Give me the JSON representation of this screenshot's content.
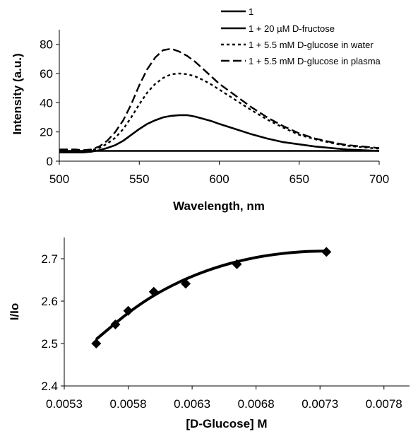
{
  "chart_data": [
    {
      "type": "line",
      "xlabel": "Wavelength, nm",
      "ylabel": "Intensity (a.u.)",
      "xlim": [
        500,
        700
      ],
      "ylim": [
        0,
        90
      ],
      "x_ticks": [
        "500",
        "550",
        "600",
        "650",
        "700"
      ],
      "y_ticks": [
        "0",
        "20",
        "40",
        "60",
        "80"
      ],
      "grid": false,
      "legend_position": "top-right",
      "x": [
        500,
        510,
        515,
        520,
        525,
        530,
        535,
        540,
        545,
        550,
        555,
        560,
        565,
        570,
        575,
        580,
        585,
        590,
        595,
        600,
        610,
        620,
        630,
        640,
        650,
        660,
        670,
        680,
        690,
        700
      ],
      "series": [
        {
          "name": "1",
          "style": "solid",
          "values": [
            7,
            7,
            7,
            7,
            7,
            7,
            7,
            7,
            7,
            7,
            7,
            7,
            7,
            7,
            7,
            7,
            7,
            7,
            7,
            7,
            7,
            7,
            7,
            7,
            7,
            7,
            7,
            7,
            7,
            7
          ]
        },
        {
          "name": "1 + 20 µM D-fructose",
          "style": "solid",
          "values": [
            6,
            6,
            6,
            6.5,
            7.5,
            9,
            11,
            14,
            18,
            22,
            25.5,
            28,
            30,
            31,
            31.5,
            31.5,
            30.5,
            29,
            27.5,
            25.5,
            22,
            18.5,
            15.5,
            13,
            11.5,
            10,
            9,
            8,
            7.5,
            7
          ]
        },
        {
          "name": "1 + 5.5 mM D-glucose in water",
          "style": "dotted",
          "values": [
            7,
            7,
            7,
            7.5,
            9,
            12,
            16,
            22,
            30,
            39,
            47,
            53,
            57,
            59.5,
            60,
            59.5,
            58,
            55.5,
            52.5,
            49,
            42,
            35,
            28.5,
            23,
            18,
            15,
            12.5,
            10.5,
            9.5,
            8.5
          ]
        },
        {
          "name": "1 + 5.5 mM D-glucose in plasma",
          "style": "dashed",
          "values": [
            8,
            8,
            7.5,
            8,
            10,
            14,
            20,
            28,
            39,
            52,
            63,
            71,
            76,
            77,
            75,
            72,
            68,
            63,
            58,
            53,
            45,
            37,
            30,
            24,
            19,
            15.5,
            13,
            11,
            10,
            9
          ]
        }
      ]
    },
    {
      "type": "scatter",
      "xlabel": "[D-Glucose] M",
      "ylabel": "I/Io",
      "xlim": [
        0.0053,
        0.008
      ],
      "ylim": [
        2.4,
        2.75
      ],
      "x_ticks": [
        "0.0053",
        "0.0058",
        "0.0063",
        "0.0068",
        "0.0073",
        "0.0078"
      ],
      "y_ticks": [
        "2.4",
        "2.5",
        "2.6",
        "2.7"
      ],
      "grid": false,
      "points": [
        {
          "x": 0.00555,
          "y": 2.5
        },
        {
          "x": 0.0057,
          "y": 2.545
        },
        {
          "x": 0.0058,
          "y": 2.577
        },
        {
          "x": 0.006,
          "y": 2.622
        },
        {
          "x": 0.00625,
          "y": 2.641
        },
        {
          "x": 0.00665,
          "y": 2.687
        },
        {
          "x": 0.00735,
          "y": 2.716
        }
      ],
      "fit_curve": {
        "x": [
          0.00555,
          0.0058,
          0.006,
          0.0062,
          0.0064,
          0.0066,
          0.0068,
          0.007,
          0.0072,
          0.00735
        ],
        "y": [
          2.51,
          2.572,
          2.613,
          2.645,
          2.67,
          2.689,
          2.703,
          2.712,
          2.717,
          2.718
        ]
      }
    }
  ]
}
